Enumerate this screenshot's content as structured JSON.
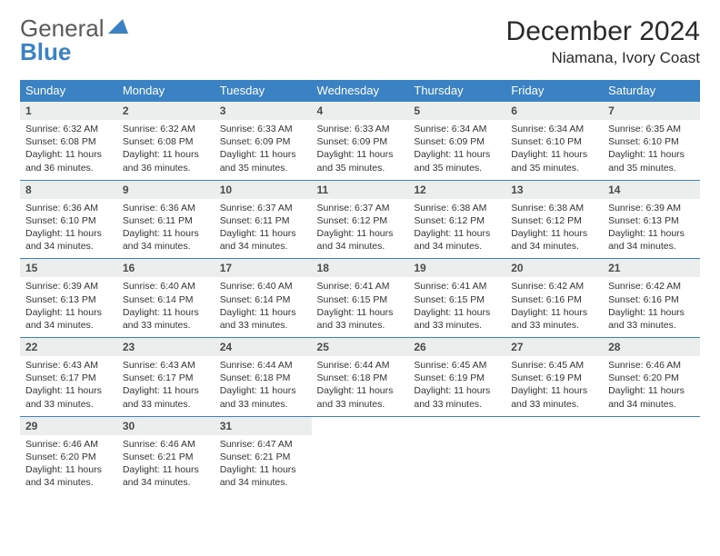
{
  "logo": {
    "main": "General",
    "sub": "Blue",
    "accent_color": "#3b82c4",
    "main_color": "#5a5a5a"
  },
  "title": "December 2024",
  "location": "Niamana, Ivory Coast",
  "colors": {
    "header_bg": "#3b82c4",
    "header_text": "#ffffff",
    "daynum_bg": "#eceeee",
    "body_text": "#333333",
    "row_border": "#3b82c4",
    "page_bg": "#ffffff"
  },
  "fonts": {
    "title_size": 30,
    "location_size": 17,
    "th_size": 13,
    "daynum_size": 12,
    "cell_size": 10.5
  },
  "weekday_headers": [
    "Sunday",
    "Monday",
    "Tuesday",
    "Wednesday",
    "Thursday",
    "Friday",
    "Saturday"
  ],
  "days": [
    {
      "n": 1,
      "sunrise": "6:32 AM",
      "sunset": "6:08 PM",
      "day_h": 11,
      "day_m": 36
    },
    {
      "n": 2,
      "sunrise": "6:32 AM",
      "sunset": "6:08 PM",
      "day_h": 11,
      "day_m": 36
    },
    {
      "n": 3,
      "sunrise": "6:33 AM",
      "sunset": "6:09 PM",
      "day_h": 11,
      "day_m": 35
    },
    {
      "n": 4,
      "sunrise": "6:33 AM",
      "sunset": "6:09 PM",
      "day_h": 11,
      "day_m": 35
    },
    {
      "n": 5,
      "sunrise": "6:34 AM",
      "sunset": "6:09 PM",
      "day_h": 11,
      "day_m": 35
    },
    {
      "n": 6,
      "sunrise": "6:34 AM",
      "sunset": "6:10 PM",
      "day_h": 11,
      "day_m": 35
    },
    {
      "n": 7,
      "sunrise": "6:35 AM",
      "sunset": "6:10 PM",
      "day_h": 11,
      "day_m": 35
    },
    {
      "n": 8,
      "sunrise": "6:36 AM",
      "sunset": "6:10 PM",
      "day_h": 11,
      "day_m": 34
    },
    {
      "n": 9,
      "sunrise": "6:36 AM",
      "sunset": "6:11 PM",
      "day_h": 11,
      "day_m": 34
    },
    {
      "n": 10,
      "sunrise": "6:37 AM",
      "sunset": "6:11 PM",
      "day_h": 11,
      "day_m": 34
    },
    {
      "n": 11,
      "sunrise": "6:37 AM",
      "sunset": "6:12 PM",
      "day_h": 11,
      "day_m": 34
    },
    {
      "n": 12,
      "sunrise": "6:38 AM",
      "sunset": "6:12 PM",
      "day_h": 11,
      "day_m": 34
    },
    {
      "n": 13,
      "sunrise": "6:38 AM",
      "sunset": "6:12 PM",
      "day_h": 11,
      "day_m": 34
    },
    {
      "n": 14,
      "sunrise": "6:39 AM",
      "sunset": "6:13 PM",
      "day_h": 11,
      "day_m": 34
    },
    {
      "n": 15,
      "sunrise": "6:39 AM",
      "sunset": "6:13 PM",
      "day_h": 11,
      "day_m": 34
    },
    {
      "n": 16,
      "sunrise": "6:40 AM",
      "sunset": "6:14 PM",
      "day_h": 11,
      "day_m": 33
    },
    {
      "n": 17,
      "sunrise": "6:40 AM",
      "sunset": "6:14 PM",
      "day_h": 11,
      "day_m": 33
    },
    {
      "n": 18,
      "sunrise": "6:41 AM",
      "sunset": "6:15 PM",
      "day_h": 11,
      "day_m": 33
    },
    {
      "n": 19,
      "sunrise": "6:41 AM",
      "sunset": "6:15 PM",
      "day_h": 11,
      "day_m": 33
    },
    {
      "n": 20,
      "sunrise": "6:42 AM",
      "sunset": "6:16 PM",
      "day_h": 11,
      "day_m": 33
    },
    {
      "n": 21,
      "sunrise": "6:42 AM",
      "sunset": "6:16 PM",
      "day_h": 11,
      "day_m": 33
    },
    {
      "n": 22,
      "sunrise": "6:43 AM",
      "sunset": "6:17 PM",
      "day_h": 11,
      "day_m": 33
    },
    {
      "n": 23,
      "sunrise": "6:43 AM",
      "sunset": "6:17 PM",
      "day_h": 11,
      "day_m": 33
    },
    {
      "n": 24,
      "sunrise": "6:44 AM",
      "sunset": "6:18 PM",
      "day_h": 11,
      "day_m": 33
    },
    {
      "n": 25,
      "sunrise": "6:44 AM",
      "sunset": "6:18 PM",
      "day_h": 11,
      "day_m": 33
    },
    {
      "n": 26,
      "sunrise": "6:45 AM",
      "sunset": "6:19 PM",
      "day_h": 11,
      "day_m": 33
    },
    {
      "n": 27,
      "sunrise": "6:45 AM",
      "sunset": "6:19 PM",
      "day_h": 11,
      "day_m": 33
    },
    {
      "n": 28,
      "sunrise": "6:46 AM",
      "sunset": "6:20 PM",
      "day_h": 11,
      "day_m": 34
    },
    {
      "n": 29,
      "sunrise": "6:46 AM",
      "sunset": "6:20 PM",
      "day_h": 11,
      "day_m": 34
    },
    {
      "n": 30,
      "sunrise": "6:46 AM",
      "sunset": "6:21 PM",
      "day_h": 11,
      "day_m": 34
    },
    {
      "n": 31,
      "sunrise": "6:47 AM",
      "sunset": "6:21 PM",
      "day_h": 11,
      "day_m": 34
    }
  ],
  "labels": {
    "sunrise": "Sunrise:",
    "sunset": "Sunset:",
    "daylight": "Daylight:",
    "hours": "hours",
    "and": "and",
    "minutes": "minutes."
  },
  "layout": {
    "start_weekday": 0,
    "cols": 7,
    "rows": 5
  }
}
